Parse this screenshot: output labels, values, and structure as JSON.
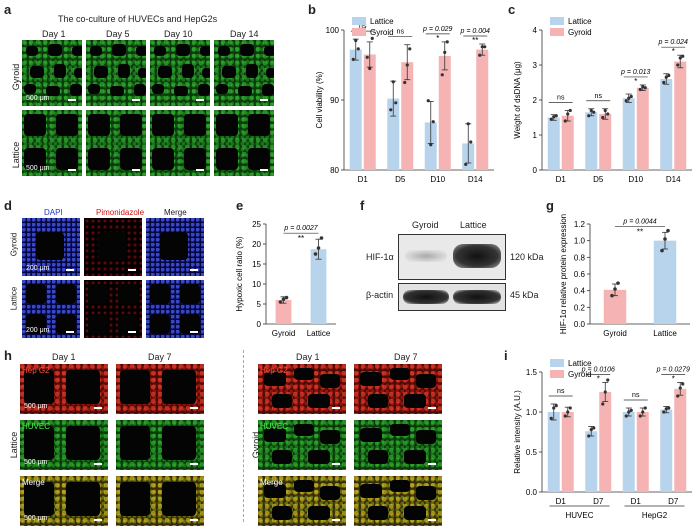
{
  "panels": {
    "a": {
      "letter": "a",
      "title": "The co-culture of HUVECs and HepG2s",
      "days": [
        "Day 1",
        "Day 5",
        "Day 10",
        "Day 14"
      ],
      "rows": [
        "Gyroid",
        "Lattice"
      ],
      "scale": "500 μm"
    },
    "b": {
      "letter": "b"
    },
    "c": {
      "letter": "c"
    },
    "d": {
      "letter": "d",
      "channels": [
        "DAPI",
        "Pimonidazole",
        "Merge"
      ],
      "rows": [
        "Gyroid",
        "Lattice"
      ],
      "scale": "200 μm"
    },
    "e": {
      "letter": "e"
    },
    "f": {
      "letter": "f",
      "lanes": [
        "Gyroid",
        "Lattice"
      ],
      "bands": [
        "HIF-1α",
        "β-actin"
      ],
      "sizes": [
        "120 kDa",
        "45 kDa"
      ]
    },
    "g": {
      "letter": "g"
    },
    "h": {
      "letter": "h",
      "days_left": [
        "Day 1",
        "Day 7"
      ],
      "days_right": [
        "Day 1",
        "Day 7"
      ],
      "row_labels": [
        "Hep G2",
        "HUVEC",
        "Merge"
      ],
      "group_left": "Lattice",
      "group_right": "Gyroid",
      "scale": "500 μm"
    },
    "i": {
      "letter": "i"
    }
  },
  "colors": {
    "lattice": "#b8d4ec",
    "gyroid": "#f6b3b3",
    "dot": "#333333"
  },
  "chart_data": [
    {
      "id": "b",
      "type": "bar",
      "categories": [
        "D1",
        "D5",
        "D10",
        "D14"
      ],
      "series": [
        {
          "name": "Lattice",
          "values": [
            97.2,
            90.2,
            86.8,
            83.8
          ],
          "err": [
            1.5,
            2.5,
            3.0,
            2.8
          ]
        },
        {
          "name": "Gyroid",
          "values": [
            96.5,
            95.4,
            96.3,
            97.2
          ],
          "err": [
            1.8,
            2.5,
            2.0,
            0.8
          ]
        }
      ],
      "points": [
        [
          [
            95.8,
            98.5,
            97.3
          ],
          [
            96.1,
            94.5,
            98.8
          ]
        ],
        [
          [
            88.6,
            92.6,
            89.6
          ],
          [
            92.5,
            95.0,
            97.3
          ]
        ],
        [
          [
            89.9,
            83.6,
            86.9
          ],
          [
            93.6,
            96.8,
            98.3
          ]
        ],
        [
          [
            80.8,
            86.6,
            84.0
          ],
          [
            96.4,
            97.6,
            97.6
          ]
        ]
      ],
      "ylabel": "Cell viability (%)",
      "ylim": [
        80,
        100
      ],
      "yticks": [
        80,
        90,
        100
      ],
      "annotations": [
        {
          "cat": 0,
          "text": "ns"
        },
        {
          "cat": 1,
          "text": "ns"
        },
        {
          "cat": 2,
          "text": "p = 0.029",
          "star": "*"
        },
        {
          "cat": 3,
          "text": "p = 0.004",
          "star": "**"
        }
      ],
      "legend": "top-left"
    },
    {
      "id": "c",
      "type": "bar",
      "categories": [
        "D1",
        "D5",
        "D10",
        "D14"
      ],
      "series": [
        {
          "name": "Lattice",
          "values": [
            1.5,
            1.65,
            2.05,
            2.6
          ],
          "err": [
            0.08,
            0.1,
            0.12,
            0.15
          ]
        },
        {
          "name": "Gyroid",
          "values": [
            1.55,
            1.6,
            2.35,
            3.1
          ],
          "err": [
            0.15,
            0.15,
            0.08,
            0.18
          ]
        }
      ],
      "points": [
        [
          [
            1.45,
            1.52,
            1.55
          ],
          [
            1.4,
            1.6,
            1.7
          ]
        ],
        [
          [
            1.55,
            1.7,
            1.65
          ],
          [
            1.5,
            1.7,
            1.6
          ]
        ],
        [
          [
            1.98,
            2.05,
            2.1
          ],
          [
            2.3,
            2.38,
            2.35
          ]
        ],
        [
          [
            2.5,
            2.65,
            2.7
          ],
          [
            3.0,
            3.2,
            3.25
          ]
        ]
      ],
      "ylabel": "Weight of dsDNA (μg)",
      "ylim": [
        0,
        4
      ],
      "yticks": [
        0,
        1,
        2,
        3,
        4
      ],
      "annotations": [
        {
          "cat": 0,
          "text": "ns"
        },
        {
          "cat": 1,
          "text": "ns"
        },
        {
          "cat": 2,
          "text": "p = 0.013",
          "star": "*"
        },
        {
          "cat": 3,
          "text": "p = 0.024",
          "star": "*"
        }
      ],
      "legend": "top-left"
    },
    {
      "id": "e",
      "type": "bar",
      "categories": [
        "Gyroid",
        "Lattice"
      ],
      "values": [
        6.0,
        18.7
      ],
      "err": [
        0.8,
        2.5
      ],
      "points": [
        [
          5.5,
          6.2,
          6.6
        ],
        [
          17.5,
          19.0,
          21.5
        ]
      ],
      "ylabel": "Hypoxic cell ratio (%)",
      "ylim": [
        0,
        25
      ],
      "yticks": [
        0,
        5,
        10,
        15,
        20,
        25
      ],
      "annotation": {
        "text": "p = 0.0027",
        "star": "**"
      }
    },
    {
      "id": "g",
      "type": "bar",
      "categories": [
        "Gyroid",
        "Lattice"
      ],
      "values": [
        0.41,
        1.0
      ],
      "err": [
        0.07,
        0.1
      ],
      "points": [
        [
          0.34,
          0.42,
          0.49
        ],
        [
          0.88,
          1.02,
          1.12
        ]
      ],
      "ylabel": "HIF-1α relative protein expression",
      "ylim": [
        0,
        1.2
      ],
      "yticks": [
        0.0,
        0.2,
        0.4,
        0.6,
        0.8,
        1.0,
        1.2
      ],
      "annotation": {
        "text": "p = 0.0044",
        "star": "**"
      }
    },
    {
      "id": "i",
      "type": "bar",
      "categories": [
        "D1",
        "D7",
        "D1",
        "D7"
      ],
      "groups": [
        "HUVEC",
        "HepG2"
      ],
      "series": [
        {
          "name": "Lattice",
          "values": [
            1.0,
            0.76,
            1.0,
            1.03
          ],
          "err": [
            0.1,
            0.06,
            0.05,
            0.04
          ]
        },
        {
          "name": "Gyroid",
          "values": [
            1.0,
            1.25,
            1.0,
            1.29
          ],
          "err": [
            0.06,
            0.12,
            0.05,
            0.08
          ]
        }
      ],
      "points": [
        [
          [
            0.92,
            1.05,
            1.08
          ],
          [
            0.95,
            1.0,
            1.05
          ]
        ],
        [
          [
            0.7,
            0.78,
            0.8
          ],
          [
            1.1,
            1.25,
            1.4
          ]
        ],
        [
          [
            0.95,
            1.0,
            1.02
          ],
          [
            0.95,
            1.0,
            1.05
          ]
        ],
        [
          [
            1.0,
            1.04,
            1.05
          ],
          [
            1.2,
            1.3,
            1.35
          ]
        ]
      ],
      "ylabel": "Relative intensity (A.U.)",
      "ylim": [
        0,
        1.5
      ],
      "yticks": [
        0.0,
        0.5,
        1.0,
        1.5
      ],
      "annotations": [
        {
          "cat": 0,
          "text": "ns"
        },
        {
          "cat": 1,
          "text": "p = 0.0106",
          "star": "*"
        },
        {
          "cat": 2,
          "text": "ns"
        },
        {
          "cat": 3,
          "text": "p = 0.0279",
          "star": "*"
        }
      ],
      "legend": "top-left"
    }
  ]
}
